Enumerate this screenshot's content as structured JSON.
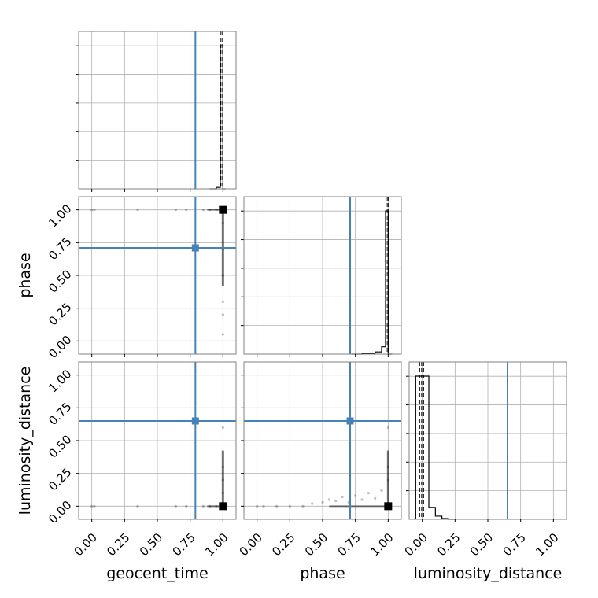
{
  "chart_data": {
    "type": "corner",
    "parameters": [
      "geocent_time",
      "phase",
      "luminosity_distance"
    ],
    "axis_range": [
      -0.1,
      1.1
    ],
    "tick_labels": [
      "0.00",
      "0.25",
      "0.50",
      "0.75",
      "1.00"
    ],
    "tick_values": [
      0,
      0.25,
      0.5,
      0.75,
      1.0
    ],
    "grid": true,
    "injected_values": {
      "geocent_time": 0.79,
      "phase": 0.71,
      "luminosity_distance": 0.65
    },
    "quantile_lines": {
      "geocent_time": [
        0.985,
        0.997,
        1.0
      ],
      "phase": [
        0.985,
        0.997,
        1.0
      ],
      "luminosity_distance": [
        -0.02,
        -0.005,
        0.01
      ]
    },
    "histograms": {
      "geocent_time": {
        "edges": [
          0.9,
          0.95,
          0.98,
          1.0,
          1.02
        ],
        "counts": [
          0,
          2,
          200,
          0
        ]
      },
      "phase": {
        "edges": [
          0.72,
          0.8,
          0.9,
          0.95,
          0.98,
          1.0,
          1.03
        ],
        "counts": [
          0,
          1,
          3,
          10,
          195,
          0
        ]
      },
      "luminosity_distance": {
        "edges": [
          -0.05,
          0.0,
          0.05,
          0.1,
          0.15,
          0.2,
          0.25
        ],
        "counts": [
          180,
          180,
          15,
          4,
          1,
          0
        ]
      }
    },
    "scatter_samples": {
      "phase_vs_geocent_time": [
        [
          0.0,
          1.0
        ],
        [
          0.02,
          1.0
        ],
        [
          0.35,
          1.0
        ],
        [
          0.64,
          1.0
        ],
        [
          0.72,
          1.0
        ],
        [
          0.85,
          1.0
        ],
        [
          0.9,
          1.0
        ],
        [
          0.95,
          1.0
        ],
        [
          1.0,
          0.9
        ],
        [
          1.0,
          0.7
        ],
        [
          1.0,
          0.5
        ],
        [
          1.0,
          0.3
        ],
        [
          1.0,
          0.2
        ],
        [
          1.0,
          0.05
        ]
      ],
      "luminosity_distance_vs_geocent_time": [
        [
          0.0,
          0.0
        ],
        [
          0.02,
          0.0
        ],
        [
          0.35,
          0.0
        ],
        [
          0.64,
          0.0
        ],
        [
          0.72,
          0.0
        ],
        [
          0.85,
          0.0
        ],
        [
          0.9,
          0.0
        ],
        [
          0.95,
          0.0
        ],
        [
          1.0,
          0.1
        ],
        [
          1.0,
          0.2
        ],
        [
          1.0,
          0.3
        ],
        [
          1.0,
          0.42
        ],
        [
          1.0,
          0.6
        ]
      ],
      "luminosity_distance_vs_phase": [
        [
          0.0,
          0.0
        ],
        [
          0.05,
          0.0
        ],
        [
          0.15,
          0.0
        ],
        [
          0.25,
          0.0
        ],
        [
          0.35,
          0.0
        ],
        [
          0.42,
          0.02
        ],
        [
          0.5,
          0.03
        ],
        [
          0.55,
          0.05
        ],
        [
          0.6,
          0.04
        ],
        [
          0.65,
          0.07
        ],
        [
          0.7,
          0.03
        ],
        [
          0.75,
          0.08
        ],
        [
          0.8,
          0.05
        ],
        [
          0.85,
          0.1
        ],
        [
          0.9,
          0.06
        ],
        [
          0.95,
          0.12
        ],
        [
          1.0,
          0.2
        ],
        [
          1.0,
          0.3
        ],
        [
          1.0,
          0.42
        ],
        [
          1.0,
          0.6
        ]
      ]
    },
    "posterior_peak": {
      "phase_vs_geocent_time": [
        1.0,
        1.0
      ],
      "luminosity_distance_vs_geocent_time": [
        1.0,
        0.0
      ],
      "luminosity_distance_vs_phase": [
        1.0,
        0.0
      ]
    },
    "colors": {
      "truth": "#4682b4",
      "samples": "#000000",
      "grid": "#b0b0b0"
    }
  }
}
